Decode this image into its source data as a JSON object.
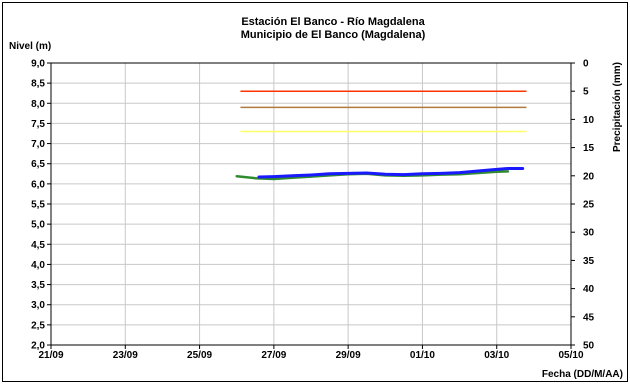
{
  "chart_data": {
    "type": "line",
    "title": "Estación El Banco - Río Magdalena",
    "subtitle": "Municipio de El Banco (Magdalena)",
    "ylabel": "Nivel (m)",
    "y2label": "Precipitación (mm)",
    "xlabel": "Fecha (DD/M/AA)",
    "xlim": [
      "21/09",
      "05/10"
    ],
    "ylim": [
      2.0,
      9.0
    ],
    "y2lim": [
      0,
      50
    ],
    "y2_inverted": true,
    "grid": true,
    "x_ticks": [
      "21/09",
      "23/09",
      "25/09",
      "27/09",
      "29/09",
      "01/10",
      "03/10",
      "05/10"
    ],
    "y_ticks": [
      "2,0",
      "2,5",
      "3,0",
      "3,5",
      "4,0",
      "4,5",
      "5,0",
      "5,5",
      "6,0",
      "6,5",
      "7,0",
      "7,5",
      "8,0",
      "8,5",
      "9,0"
    ],
    "y2_ticks": [
      "0",
      "5",
      "10",
      "15",
      "20",
      "25",
      "30",
      "35",
      "40",
      "45",
      "50"
    ],
    "thresholds": [
      {
        "value": 8.3,
        "x_start": 26.1,
        "x_end": 33.8,
        "color": "#ff3300"
      },
      {
        "value": 7.9,
        "x_start": 26.1,
        "x_end": 33.8,
        "color": "#b07a3c"
      },
      {
        "value": 7.3,
        "x_start": 26.1,
        "x_end": 33.8,
        "color": "#ffff66"
      }
    ],
    "series": [
      {
        "color": "#1a1aff",
        "x": [
          26.6,
          27.0,
          27.5,
          28.0,
          28.5,
          29.0,
          29.5,
          30.0,
          30.5,
          31.0,
          31.5,
          32.0,
          32.5,
          33.0,
          33.3,
          33.7
        ],
        "values": [
          6.17,
          6.18,
          6.2,
          6.22,
          6.25,
          6.26,
          6.27,
          6.24,
          6.23,
          6.25,
          6.26,
          6.28,
          6.32,
          6.36,
          6.38,
          6.38
        ]
      },
      {
        "color": "#2e8b2e",
        "x": [
          26.0,
          26.5,
          27.0,
          27.5,
          28.0,
          28.5,
          29.0,
          29.5,
          30.0,
          30.5,
          31.0,
          31.5,
          32.0,
          32.5,
          33.0,
          33.3
        ],
        "values": [
          6.19,
          6.14,
          6.12,
          6.15,
          6.18,
          6.21,
          6.24,
          6.25,
          6.21,
          6.2,
          6.21,
          6.23,
          6.24,
          6.27,
          6.3,
          6.31
        ]
      }
    ]
  }
}
